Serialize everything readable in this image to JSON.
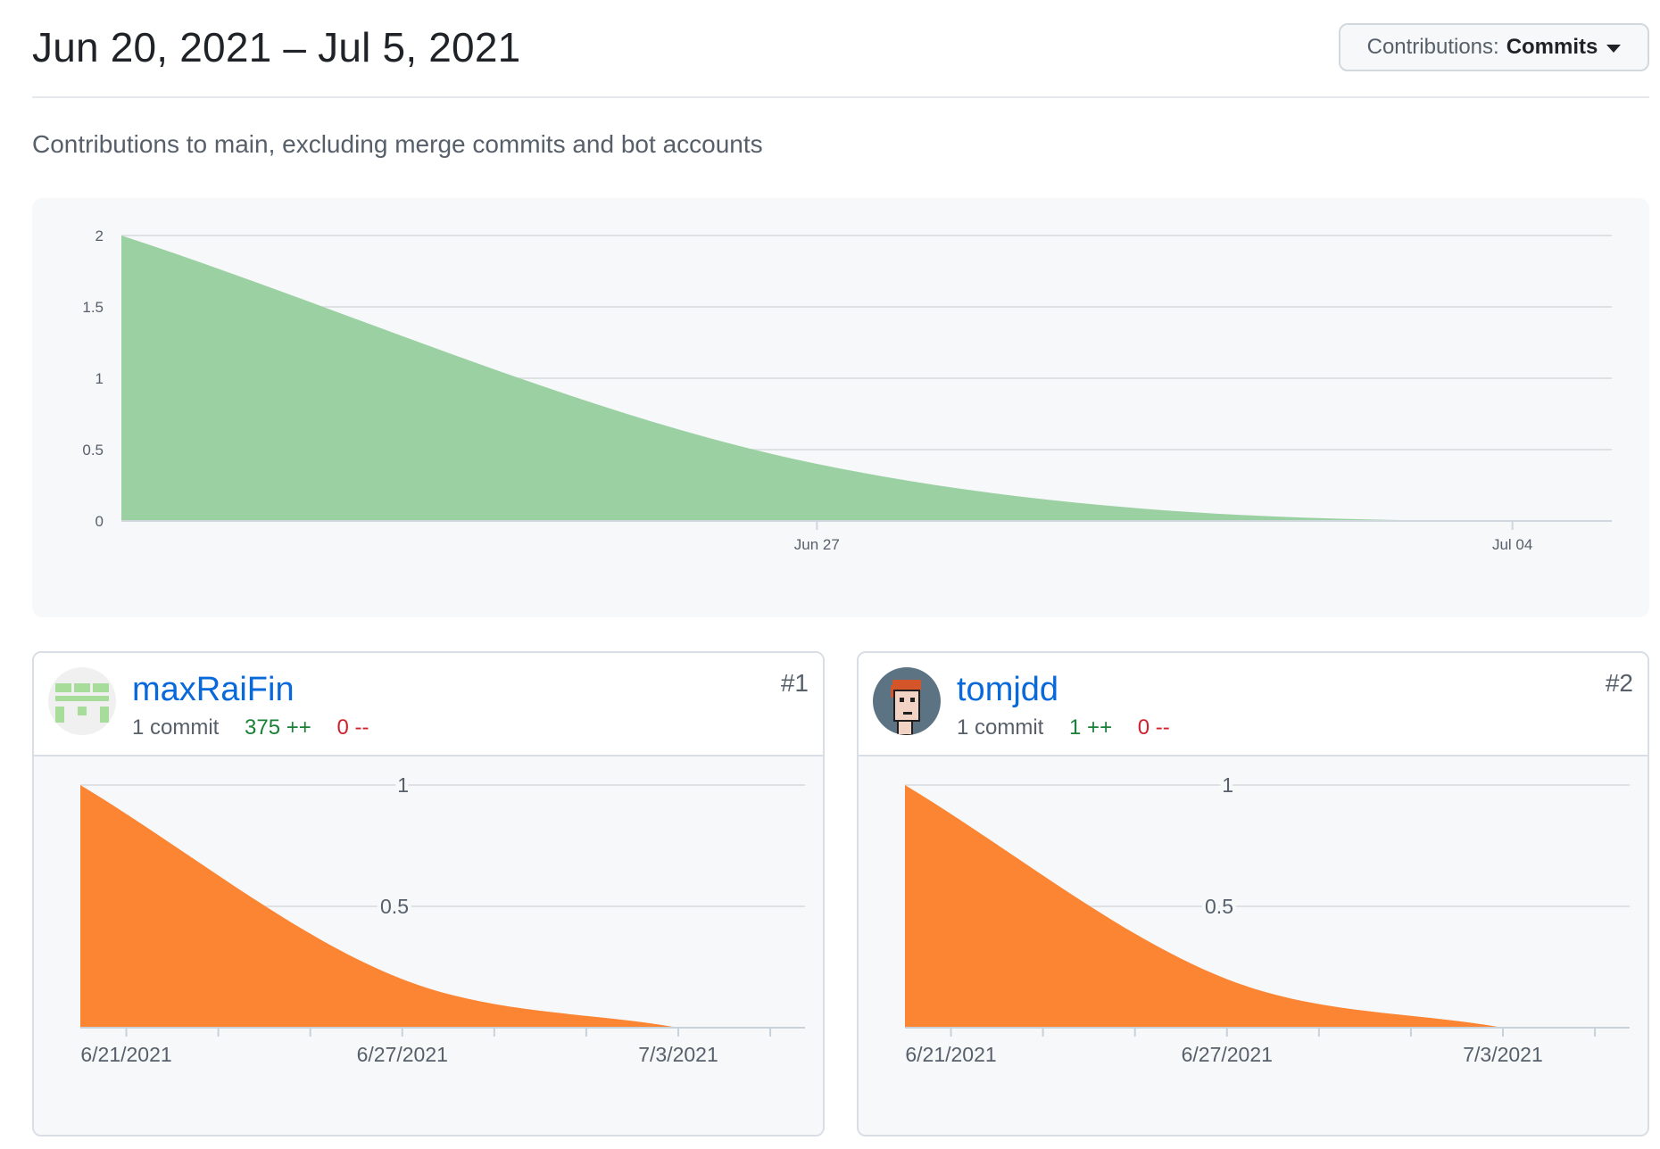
{
  "header": {
    "date_range": "Jun 20, 2021 – Jul 5, 2021",
    "dropdown_label": "Contributions:",
    "dropdown_value": "Commits"
  },
  "subtitle": "Contributions to main, excluding merge commits and bot accounts",
  "colors": {
    "main_area": "#9bd0a2",
    "main_line": "#7cc08a",
    "contributor_area": "#fb8532",
    "grid": "#dfe2e5",
    "link": "#0969da",
    "additions": "#1a7f37",
    "deletions": "#cf222e"
  },
  "chart_data": [
    {
      "type": "area",
      "x_ticks": [
        "Jun 27",
        "Jul 04"
      ],
      "x": [
        "2021-06-20",
        "2021-06-27",
        "2021-07-04",
        "2021-07-05"
      ],
      "values": [
        2,
        0.4,
        0,
        0
      ],
      "y_ticks": [
        "0",
        "0.5",
        "1",
        "1.5",
        "2"
      ],
      "ylim": [
        0,
        2
      ],
      "grid": true
    },
    {
      "type": "area",
      "x_ticks": [
        "6/21/2021",
        "6/27/2021",
        "7/3/2021"
      ],
      "x": [
        "2021-06-20",
        "2021-06-27",
        "2021-07-03"
      ],
      "values": [
        1,
        0.2,
        0
      ],
      "y_ticks": [
        "0.5",
        "1"
      ],
      "ylim": [
        0,
        1
      ],
      "grid": true
    },
    {
      "type": "area",
      "x_ticks": [
        "6/21/2021",
        "6/27/2021",
        "7/3/2021"
      ],
      "x": [
        "2021-06-20",
        "2021-06-27",
        "2021-07-03"
      ],
      "values": [
        1,
        0.2,
        0
      ],
      "y_ticks": [
        "0.5",
        "1"
      ],
      "ylim": [
        0,
        1
      ],
      "grid": true
    }
  ],
  "contributors": [
    {
      "username": "maxRaiFin",
      "commits": "1 commit",
      "additions": "375 ++",
      "deletions": "0 --",
      "rank": "#1",
      "avatar_icon": "identicon-avatar"
    },
    {
      "username": "tomjdd",
      "commits": "1 commit",
      "additions": "1 ++",
      "deletions": "0 --",
      "rank": "#2",
      "avatar_icon": "pixel-face-avatar"
    }
  ]
}
